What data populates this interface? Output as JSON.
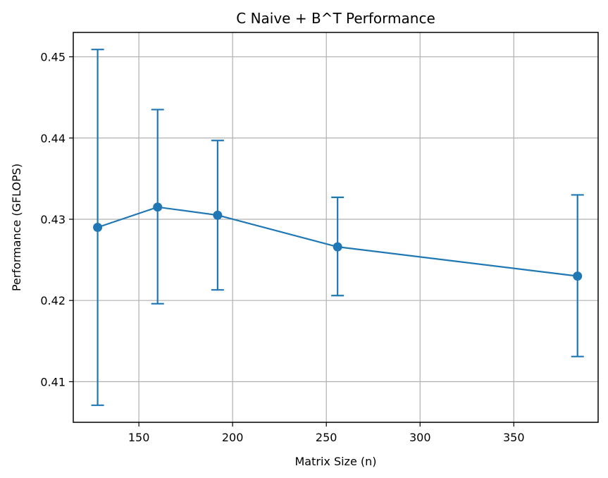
{
  "chart_data": {
    "type": "line",
    "title": "C Naive + B^T Performance",
    "xlabel": "Matrix Size (n)",
    "ylabel": "Performance (GFLOPS)",
    "xlim": [
      115,
      395
    ],
    "ylim": [
      0.405,
      0.453
    ],
    "x_ticks": [
      150,
      200,
      250,
      300,
      350
    ],
    "x_tick_labels": [
      "150",
      "200",
      "250",
      "300",
      "350"
    ],
    "y_ticks": [
      0.41,
      0.42,
      0.43,
      0.44,
      0.45
    ],
    "y_tick_labels": [
      "0.41",
      "0.42",
      "0.43",
      "0.44",
      "0.45"
    ],
    "grid": true,
    "series": [
      {
        "color": "#1f77b4",
        "marker": "circle",
        "error_bars": true,
        "points": [
          {
            "x": 128,
            "y": 0.429,
            "y_lower": 0.4071,
            "y_upper": 0.4509
          },
          {
            "x": 160,
            "y": 0.4315,
            "y_lower": 0.4196,
            "y_upper": 0.4435
          },
          {
            "x": 192,
            "y": 0.4305,
            "y_lower": 0.4213,
            "y_upper": 0.4397
          },
          {
            "x": 256,
            "y": 0.4266,
            "y_lower": 0.4206,
            "y_upper": 0.4327
          },
          {
            "x": 384,
            "y": 0.423,
            "y_lower": 0.4131,
            "y_upper": 0.433
          }
        ]
      }
    ]
  }
}
